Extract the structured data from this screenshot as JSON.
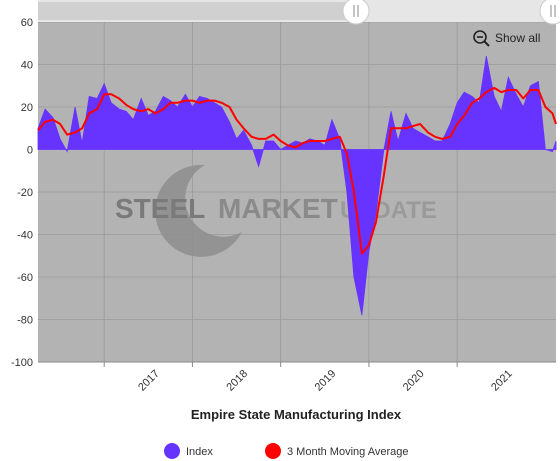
{
  "chart_data": {
    "type": "area",
    "title": "Empire State Manufacturing Index",
    "xlabel": "",
    "ylabel": "",
    "ylim": [
      -100,
      60
    ],
    "yticks": [
      -100,
      -80,
      -60,
      -40,
      -20,
      0,
      20,
      40,
      60
    ],
    "xlim": [
      2016.25,
      2022.12
    ],
    "year_ticks": [
      "2017",
      "2018",
      "2019",
      "2020",
      "2021"
    ],
    "grid": true,
    "legend_position": "bottom",
    "colors": {
      "index": "#6633ff",
      "moving_average": "#ff0000",
      "plot_background": "#b3b3b3"
    },
    "watermark": {
      "word1": "STEEL",
      "word2": "MARKET",
      "word3": "UPDATE"
    },
    "series": [
      {
        "name": "Index",
        "x": [
          2016.25,
          2016.33,
          2016.42,
          2016.5,
          2016.58,
          2016.67,
          2016.75,
          2016.83,
          2016.92,
          2017.0,
          2017.08,
          2017.17,
          2017.25,
          2017.33,
          2017.42,
          2017.5,
          2017.58,
          2017.67,
          2017.75,
          2017.83,
          2017.92,
          2018.0,
          2018.08,
          2018.17,
          2018.25,
          2018.33,
          2018.42,
          2018.5,
          2018.58,
          2018.67,
          2018.75,
          2018.83,
          2018.92,
          2019.0,
          2019.08,
          2019.17,
          2019.25,
          2019.33,
          2019.42,
          2019.5,
          2019.58,
          2019.67,
          2019.75,
          2019.83,
          2019.92,
          2020.0,
          2020.08,
          2020.17,
          2020.25,
          2020.33,
          2020.42,
          2020.5,
          2020.58,
          2020.67,
          2020.75,
          2020.83,
          2020.92,
          2021.0,
          2021.08,
          2021.17,
          2021.25,
          2021.33,
          2021.42,
          2021.5,
          2021.58,
          2021.67,
          2021.75,
          2021.83,
          2021.92,
          2022.0,
          2022.08,
          2022.12
        ],
        "values": [
          10,
          19,
          15,
          5,
          -1,
          20,
          3,
          25,
          24,
          31,
          22,
          19,
          18,
          14,
          24,
          16,
          18,
          25,
          23,
          20,
          26,
          20,
          25,
          24,
          22,
          20,
          13,
          5,
          9,
          2,
          -8,
          4,
          4,
          0,
          2,
          4,
          3,
          5,
          4,
          2,
          14,
          5,
          -20,
          -60,
          -78,
          -48,
          -30,
          0,
          18,
          4,
          17,
          10,
          8,
          6,
          4,
          4,
          12,
          22,
          27,
          25,
          22,
          44,
          25,
          18,
          34,
          26,
          20,
          30,
          32,
          0,
          -1,
          4
        ],
        "color": "#6633ff"
      },
      {
        "name": "3 Month Moving Average",
        "x": [
          2016.25,
          2016.33,
          2016.42,
          2016.5,
          2016.58,
          2016.67,
          2016.75,
          2016.83,
          2016.92,
          2017.0,
          2017.08,
          2017.17,
          2017.25,
          2017.33,
          2017.42,
          2017.5,
          2017.58,
          2017.67,
          2017.75,
          2017.83,
          2017.92,
          2018.0,
          2018.08,
          2018.17,
          2018.25,
          2018.33,
          2018.42,
          2018.5,
          2018.58,
          2018.67,
          2018.75,
          2018.83,
          2018.92,
          2019.0,
          2019.08,
          2019.17,
          2019.25,
          2019.33,
          2019.42,
          2019.5,
          2019.58,
          2019.67,
          2019.75,
          2019.83,
          2019.92,
          2020.0,
          2020.08,
          2020.17,
          2020.25,
          2020.33,
          2020.42,
          2020.5,
          2020.58,
          2020.67,
          2020.75,
          2020.83,
          2020.92,
          2021.0,
          2021.08,
          2021.17,
          2021.25,
          2021.33,
          2021.42,
          2021.5,
          2021.58,
          2021.67,
          2021.75,
          2021.83,
          2021.92,
          2022.0,
          2022.08,
          2022.12
        ],
        "values": [
          9,
          13,
          14,
          12,
          7,
          8,
          10,
          17,
          19,
          26,
          26,
          24,
          21,
          19,
          18,
          19,
          17,
          19,
          22,
          22,
          23,
          23,
          22,
          23,
          23,
          22,
          20,
          14,
          10,
          6,
          5,
          5,
          7,
          4,
          2,
          1,
          3,
          4,
          4,
          4,
          5,
          6,
          -2,
          -20,
          -49,
          -45,
          -34,
          -12,
          10,
          10,
          10,
          11,
          12,
          8,
          6,
          5,
          6,
          12,
          16,
          22,
          24,
          27,
          29,
          27,
          28,
          28,
          24,
          28,
          28,
          20,
          17,
          12
        ],
        "color": "#ff0000"
      }
    ]
  },
  "toolbar": {
    "show_all_label": "Show all",
    "zoom_icon": "zoom-out-icon"
  }
}
